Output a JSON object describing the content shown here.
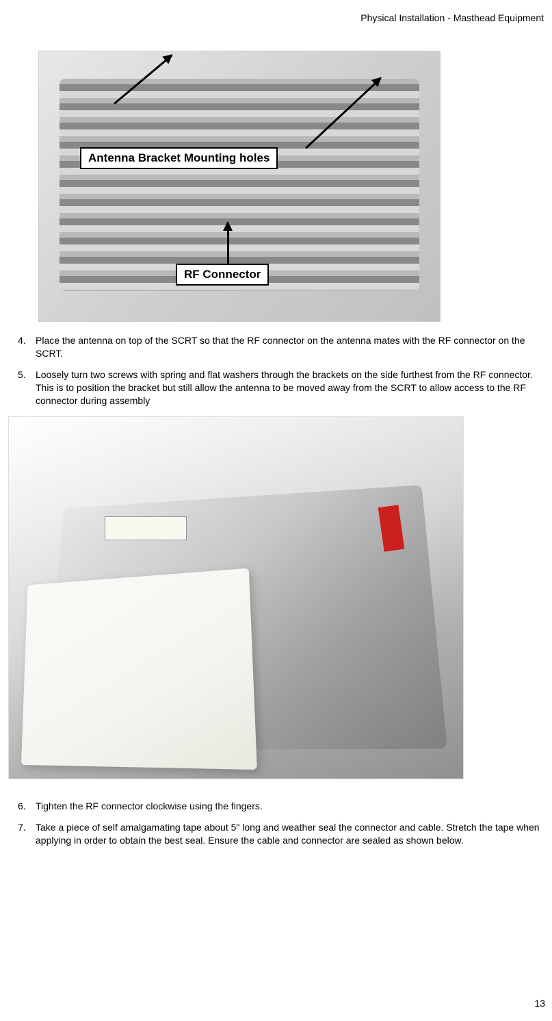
{
  "header": {
    "title": "Physical Installation - Masthead Equipment"
  },
  "figure1": {
    "label1": "Antenna Bracket Mounting holes",
    "label2": "RF Connector"
  },
  "instructions_block1": {
    "items": [
      {
        "number": "4.",
        "text": "Place the antenna on top of the SCRT so that the RF connector on the antenna mates with the RF connector on the SCRT."
      },
      {
        "number": "5.",
        "text": "Loosely turn two screws with spring and flat washers through the brackets on the side furthest from the RF connector. This is to position the bracket but still allow the antenna to be moved away from the SCRT to allow access to the RF connector during assembly"
      }
    ]
  },
  "instructions_block2": {
    "items": [
      {
        "number": "6.",
        "text": "Tighten the RF connector clockwise using the fingers."
      },
      {
        "number": "7.",
        "text": "Take a piece of self amalgamating tape about 5\" long and weather seal the connector and cable. Stretch the tape when applying in order to obtain the best seal. Ensure the cable and connector are sealed as shown below."
      }
    ]
  },
  "page_number": "13"
}
